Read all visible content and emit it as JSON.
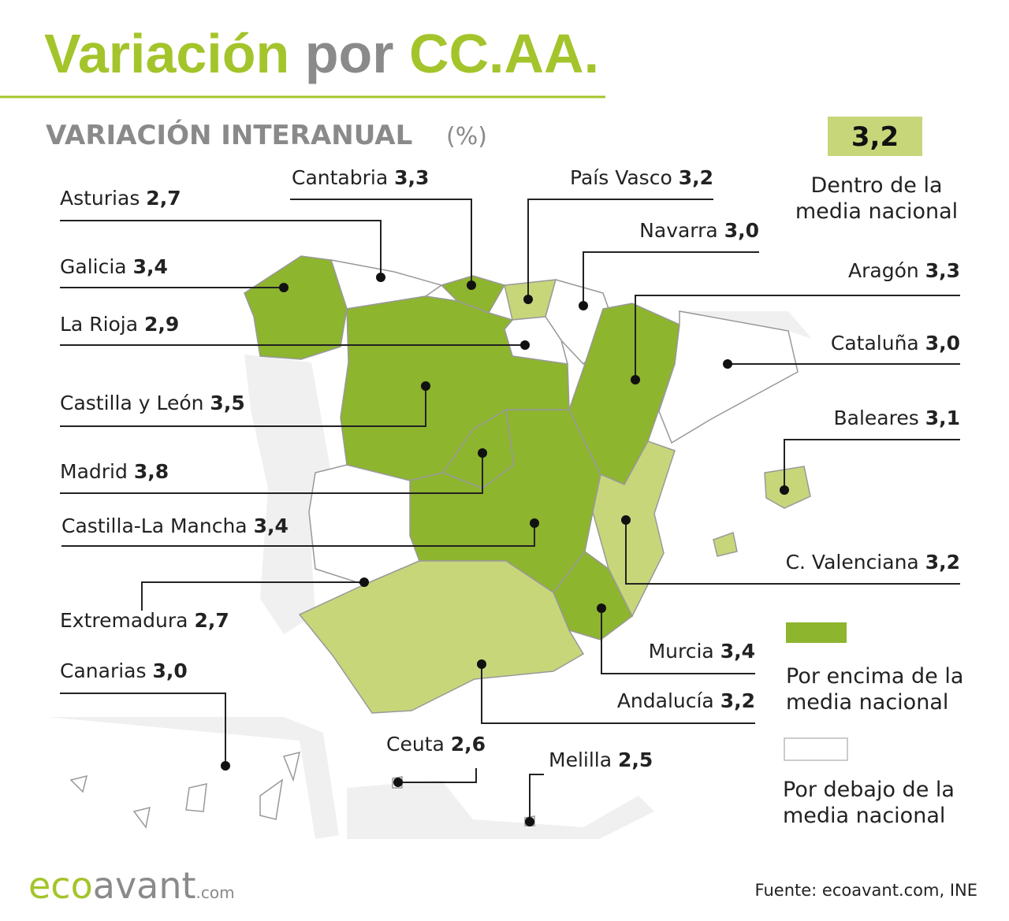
{
  "header": {
    "title": [
      "Variación",
      "por",
      "CC.AA."
    ],
    "subtitle": "VARIACIÓN INTERANUAL",
    "unit": "(%)"
  },
  "regions": [
    {
      "name": "Asturias",
      "value": "2,7",
      "color": "#ffffff"
    },
    {
      "name": "Cantabria",
      "value": "3,3",
      "color": "#8db52e"
    },
    {
      "name": "País Vasco",
      "value": "3,2",
      "color": "#c8d67a"
    },
    {
      "name": "Navarra",
      "value": "3,0",
      "color": "#ffffff"
    },
    {
      "name": "Galicia",
      "value": "3,4",
      "color": "#8db52e"
    },
    {
      "name": "Aragón",
      "value": "3,3",
      "color": "#8db52e"
    },
    {
      "name": "La Rioja",
      "value": "2,9",
      "color": "#ffffff"
    },
    {
      "name": "Cataluña",
      "value": "3,0",
      "color": "#ffffff"
    },
    {
      "name": "Castilla y León",
      "value": "3,5",
      "color": "#8db52e"
    },
    {
      "name": "Baleares",
      "value": "3,1",
      "color": "#c8d67a"
    },
    {
      "name": "Madrid",
      "value": "3,8",
      "color": "#8db52e"
    },
    {
      "name": "Castilla-La Mancha",
      "value": "3,4",
      "color": "#8db52e"
    },
    {
      "name": "C. Valenciana",
      "value": "3,2",
      "color": "#c8d67a"
    },
    {
      "name": "Extremadura",
      "value": "2,7",
      "color": "#ffffff"
    },
    {
      "name": "Murcia",
      "value": "3,4",
      "color": "#8db52e"
    },
    {
      "name": "Canarias",
      "value": "3,0",
      "color": "#ffffff"
    },
    {
      "name": "Andalucía",
      "value": "3,2",
      "color": "#c8d67a"
    },
    {
      "name": "Ceuta",
      "value": "2,6",
      "color": "#ffffff"
    },
    {
      "name": "Melilla",
      "value": "2,5",
      "color": "#ffffff"
    }
  ],
  "legend": [
    {
      "color": "#c8d67a",
      "value": "3,2",
      "text": [
        "Dentro de la",
        "media nacional"
      ]
    },
    {
      "color": "#8db52e",
      "text": [
        "Por encima de la",
        "media nacional"
      ]
    },
    {
      "color": "#ffffff",
      "text": [
        "Por debajo de la",
        "media nacional"
      ]
    }
  ],
  "footer": {
    "logo": [
      "eco",
      "avant",
      ".com"
    ],
    "source": "Fuente: ecoavant.com, INE"
  }
}
